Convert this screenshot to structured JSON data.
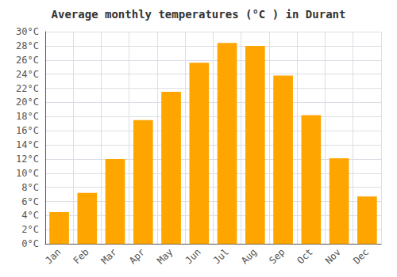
{
  "chart_data": {
    "type": "bar",
    "title": "Average monthly temperatures (°C ) in Durant",
    "categories": [
      "Jan",
      "Feb",
      "Mar",
      "Apr",
      "May",
      "Jun",
      "Jul",
      "Aug",
      "Sep",
      "Oct",
      "Nov",
      "Dec"
    ],
    "values": [
      4.5,
      7.2,
      12.0,
      17.5,
      21.5,
      25.6,
      28.4,
      28.0,
      23.8,
      18.2,
      12.1,
      6.7
    ],
    "color": "#FFA500",
    "ylim": [
      0,
      30
    ],
    "yticks": [
      {
        "value": 0,
        "label": "0°C"
      },
      {
        "value": 2,
        "label": "2°C"
      },
      {
        "value": 4,
        "label": "4°C"
      },
      {
        "value": 6,
        "label": "6°C"
      },
      {
        "value": 8,
        "label": "8°C"
      },
      {
        "value": 10,
        "label": "10°C"
      },
      {
        "value": 12,
        "label": "12°C"
      },
      {
        "value": 14,
        "label": "14°C"
      },
      {
        "value": 16,
        "label": "16°C"
      },
      {
        "value": 18,
        "label": "18°C"
      },
      {
        "value": 20,
        "label": "20°C"
      },
      {
        "value": 22,
        "label": "22°C"
      },
      {
        "value": 24,
        "label": "24°C"
      },
      {
        "value": 26,
        "label": "26°C"
      },
      {
        "value": 28,
        "label": "28°C"
      },
      {
        "value": 30,
        "label": "30°C"
      }
    ],
    "grid": true
  }
}
